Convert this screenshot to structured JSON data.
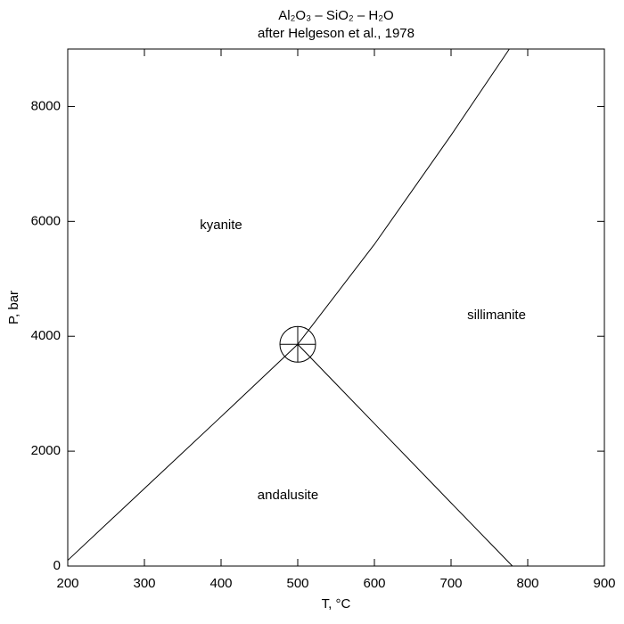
{
  "chart_data": {
    "type": "line",
    "title": "Al₂O₃ – SiO₂ – H₂O",
    "subtitle": "after Helgeson et al., 1978",
    "x_label": "T, °C",
    "y_label": "P, bar",
    "xlim": [
      200,
      900
    ],
    "ylim": [
      0,
      9000
    ],
    "xticks": [
      200,
      300,
      400,
      500,
      600,
      700,
      800,
      900
    ],
    "yticks": [
      0,
      2000,
      4000,
      6000,
      8000
    ],
    "series": [
      {
        "color": "#000000",
        "x": [
          200,
          300,
          400,
          500
        ],
        "values": [
          100,
          1350,
          2600,
          3860
        ]
      },
      {
        "color": "#000000",
        "x": [
          500,
          600,
          700,
          780
        ],
        "values": [
          3860,
          2480,
          1100,
          0
        ]
      },
      {
        "color": "#000000",
        "x": [
          500,
          600,
          700,
          776
        ],
        "values": [
          3860,
          5600,
          7500,
          9000
        ]
      }
    ],
    "triple_point": {
      "x": 500,
      "y": 3860
    },
    "annotations": [
      "kyanite",
      "sillimanite",
      "andalusite"
    ]
  }
}
